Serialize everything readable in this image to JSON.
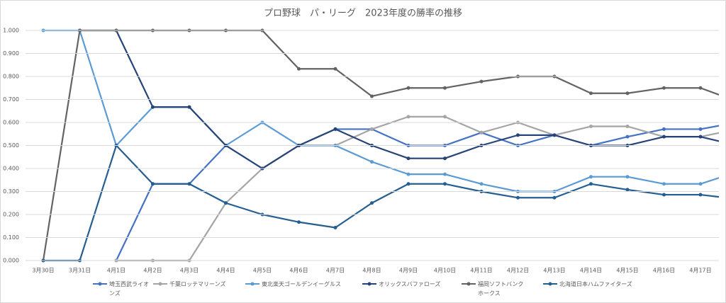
{
  "chart_data": {
    "type": "line",
    "title": "プロ野球　パ・リーグ　2023年度の勝率の推移",
    "categories": [
      "3月30日",
      "3月31日",
      "4月1日",
      "4月2日",
      "4月3日",
      "4月4日",
      "4月5日",
      "4月6日",
      "4月7日",
      "4月8日",
      "4月9日",
      "4月10日",
      "4月11日",
      "4月12日",
      "4月13日",
      "4月14日",
      "4月15日",
      "4月16日",
      "4月17日",
      null
    ],
    "series": [
      {
        "name": "埼玉西武ライオンズ",
        "color": "#4472c4",
        "values": [
          null,
          null,
          0,
          0.333,
          0.333,
          0.5,
          0.4,
          0.5,
          0.571,
          0.571,
          0.5,
          0.5,
          0.556,
          0.5,
          0.545,
          0.5,
          0.538,
          0.571,
          0.571,
          0.6
        ]
      },
      {
        "name": "千葉ロッテマリーンズ",
        "color": "#a5a5a5",
        "values": [
          null,
          null,
          0,
          0,
          0,
          0.25,
          0.4,
          0.5,
          0.5,
          0.571,
          0.625,
          0.625,
          0.556,
          0.6,
          0.545,
          0.583,
          0.583,
          0.538,
          0.538,
          0.571
        ]
      },
      {
        "name": "東北楽天ゴールデンイーグルス",
        "color": "#5b9bd5",
        "values": [
          1,
          1,
          0.5,
          0.667,
          0.667,
          0.5,
          0.6,
          0.5,
          0.5,
          0.429,
          0.375,
          0.375,
          0.333,
          0.3,
          0.3,
          0.364,
          0.364,
          0.333,
          0.333,
          0.385
        ]
      },
      {
        "name": "オリックスバファローズ",
        "color": "#264478",
        "values": [
          null,
          1,
          1,
          0.667,
          0.667,
          0.5,
          0.4,
          0.5,
          0.571,
          0.5,
          0.444,
          0.444,
          0.5,
          0.545,
          0.545,
          0.5,
          0.5,
          0.538,
          0.538,
          0.5
        ]
      },
      {
        "name": "福岡ソフトバンクホークス",
        "color": "#636363",
        "values": [
          0,
          1,
          1,
          1,
          1,
          1,
          1,
          0.833,
          0.833,
          0.714,
          0.75,
          0.75,
          0.778,
          0.8,
          0.8,
          0.727,
          0.727,
          0.75,
          0.75,
          0.692
        ]
      },
      {
        "name": "北海道日本ハムファイターズ",
        "color": "#255e91",
        "values": [
          0,
          0,
          0.5,
          0.333,
          0.333,
          0.25,
          0.2,
          0.167,
          0.143,
          0.25,
          0.333,
          0.333,
          0.3,
          0.273,
          0.273,
          0.333,
          0.308,
          0.286,
          0.286,
          0.267
        ]
      }
    ],
    "ylim": [
      0,
      1
    ],
    "yticks": [
      {
        "value": 0,
        "label": "0.000"
      },
      {
        "value": 0.1,
        "label": "0.100"
      },
      {
        "value": 0.2,
        "label": "0.200"
      },
      {
        "value": 0.3,
        "label": "0.300"
      },
      {
        "value": 0.4,
        "label": "0.400"
      },
      {
        "value": 0.5,
        "label": "0.500"
      },
      {
        "value": 0.6,
        "label": "0.600"
      },
      {
        "value": 0.7,
        "label": "0.700"
      },
      {
        "value": 0.8,
        "label": "0.800"
      },
      {
        "value": 0.9,
        "label": "0.900"
      },
      {
        "value": 1,
        "label": "1.000"
      }
    ],
    "grid": true
  }
}
